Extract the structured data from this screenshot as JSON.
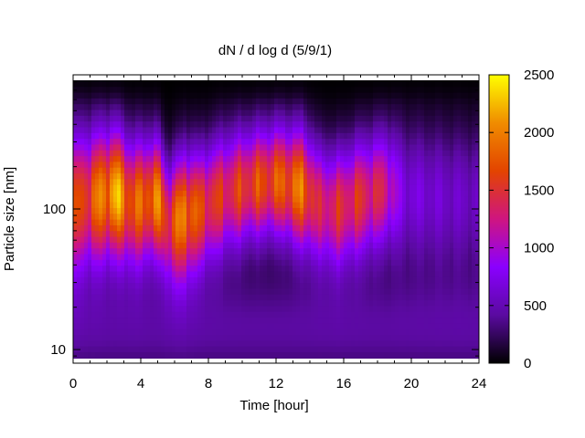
{
  "chart_data": {
    "type": "heatmap",
    "title": "dN / d log d (5/9/1)",
    "xlabel": "Time [hour]",
    "ylabel": "Particle size [nm]",
    "xlim": [
      0,
      24
    ],
    "ylim": [
      8,
      900
    ],
    "y_scale": "log",
    "x_ticks": [
      0,
      4,
      8,
      12,
      16,
      20,
      24
    ],
    "x_tick_labels": [
      "0",
      "4",
      "8",
      "12",
      "16",
      "20",
      "24"
    ],
    "y_ticks": [
      10,
      100
    ],
    "y_tick_labels": [
      "10",
      "100"
    ],
    "colorbar": {
      "range": [
        0,
        2500
      ],
      "ticks": [
        0,
        500,
        1000,
        1500,
        2000,
        2500
      ],
      "tick_labels": [
        "0",
        "500",
        "1000",
        "1500",
        "2000",
        "2500"
      ],
      "colormap": [
        "#000000",
        "#5a0aa0",
        "#8a00ff",
        "#cf1580",
        "#e34400",
        "#f08c00",
        "#ffff00"
      ]
    },
    "mode_profile": [
      {
        "t": 0.0,
        "peak_d": 110,
        "amp": 1500,
        "width": 0.36
      },
      {
        "t": 1.0,
        "peak_d": 120,
        "amp": 1700,
        "width": 0.34
      },
      {
        "t": 2.5,
        "peak_d": 130,
        "amp": 2200,
        "width": 0.32
      },
      {
        "t": 3.5,
        "peak_d": 110,
        "amp": 1700,
        "width": 0.32
      },
      {
        "t": 5.0,
        "peak_d": 120,
        "amp": 1950,
        "width": 0.3
      },
      {
        "t": 5.6,
        "peak_d": 80,
        "amp": 1500,
        "width": 0.3
      },
      {
        "t": 6.6,
        "peak_d": 90,
        "amp": 2000,
        "width": 0.32
      },
      {
        "t": 7.5,
        "peak_d": 100,
        "amp": 1600,
        "width": 0.3
      },
      {
        "t": 9.0,
        "peak_d": 130,
        "amp": 1450,
        "width": 0.3
      },
      {
        "t": 10.5,
        "peak_d": 150,
        "amp": 1600,
        "width": 0.28
      },
      {
        "t": 12.0,
        "peak_d": 160,
        "amp": 1700,
        "width": 0.28
      },
      {
        "t": 13.6,
        "peak_d": 140,
        "amp": 1900,
        "width": 0.3
      },
      {
        "t": 14.5,
        "peak_d": 110,
        "amp": 1300,
        "width": 0.3
      },
      {
        "t": 15.5,
        "peak_d": 100,
        "amp": 1400,
        "width": 0.3
      },
      {
        "t": 17.0,
        "peak_d": 120,
        "amp": 1450,
        "width": 0.3
      },
      {
        "t": 18.5,
        "peak_d": 140,
        "amp": 1300,
        "width": 0.3
      },
      {
        "t": 19.5,
        "peak_d": 130,
        "amp": 700,
        "width": 0.34
      },
      {
        "t": 22.0,
        "peak_d": 120,
        "amp": 600,
        "width": 0.36
      },
      {
        "t": 24.0,
        "peak_d": 120,
        "amp": 550,
        "width": 0.36
      }
    ]
  }
}
